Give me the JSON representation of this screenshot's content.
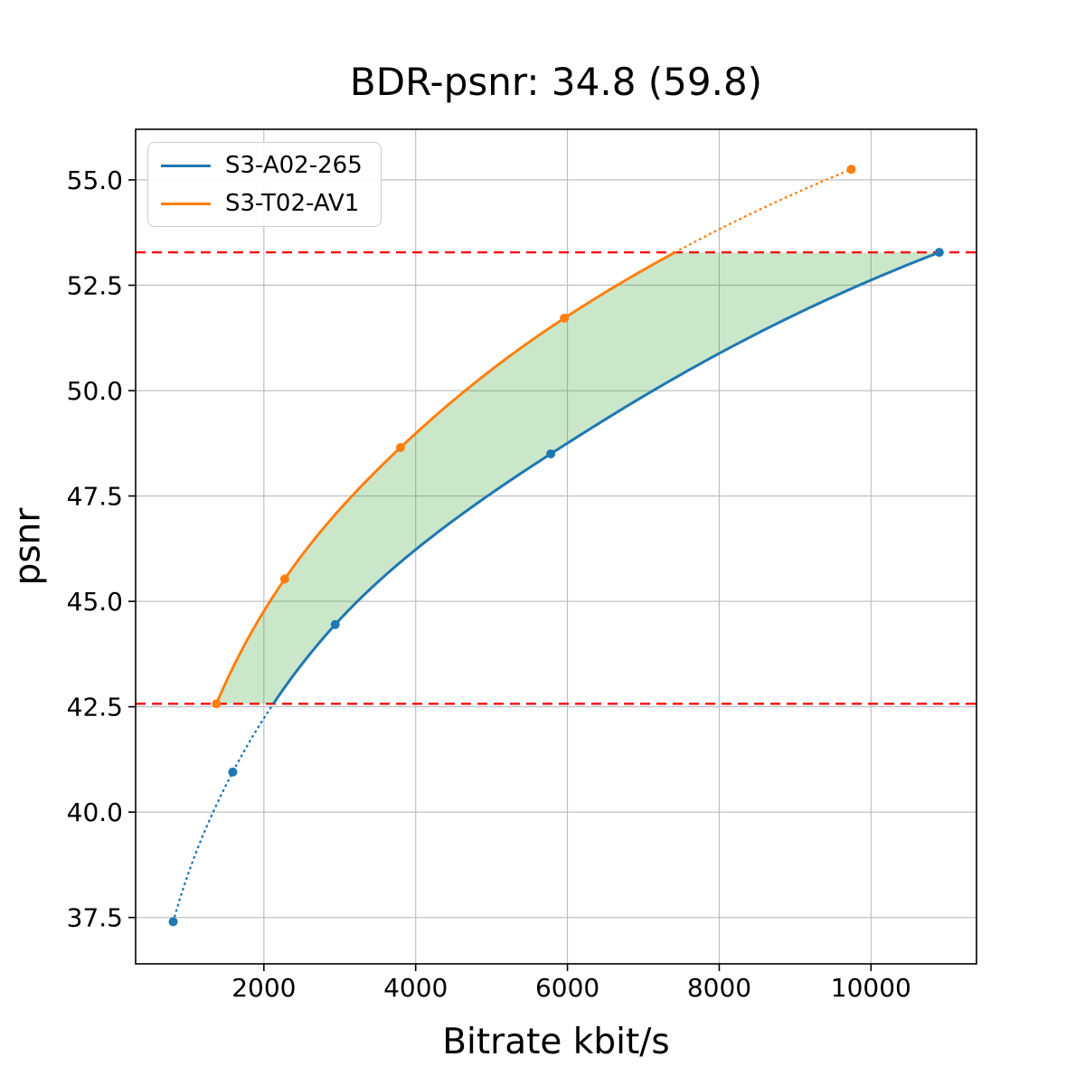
{
  "chart_data": {
    "type": "line",
    "title": "BDR-psnr: 34.8 (59.8)",
    "xlabel": "Bitrate kbit/s",
    "ylabel": "psnr",
    "xlim": [
      310,
      11390
    ],
    "ylim": [
      36.4,
      56.2
    ],
    "xticks": [
      2000,
      4000,
      6000,
      8000,
      10000
    ],
    "xtick_labels": [
      "2000",
      "4000",
      "6000",
      "8000",
      "10000"
    ],
    "yticks": [
      37.5,
      40.0,
      42.5,
      45.0,
      47.5,
      50.0,
      52.5,
      55.0
    ],
    "ytick_labels": [
      "37.5",
      "40.0",
      "42.5",
      "45.0",
      "47.5",
      "50.0",
      "52.5",
      "55.0"
    ],
    "grid": true,
    "grid_color": "#bbbbbb",
    "legend_position": "upper left",
    "series": [
      {
        "name": "S3-A02-265",
        "color": "#1f77b4",
        "x": [
          805,
          1590,
          2940,
          5780,
          10900
        ],
        "y": [
          37.4,
          40.95,
          44.45,
          48.5,
          53.28
        ]
      },
      {
        "name": "S3-T02-AV1",
        "color": "#ff7f0e",
        "x": [
          1375,
          2275,
          3800,
          5960,
          9740
        ],
        "y": [
          42.57,
          45.53,
          48.65,
          51.72,
          55.25
        ]
      }
    ],
    "reference_lines": {
      "lower_value": 42.57,
      "upper_value": 53.28,
      "color": "#ff0000",
      "style": "dashed"
    },
    "shaded_region": {
      "fill_color": "#2ca02c",
      "opacity": 0.25,
      "description": "area between the two rate-distortion curves clipped to the reference lines"
    }
  }
}
